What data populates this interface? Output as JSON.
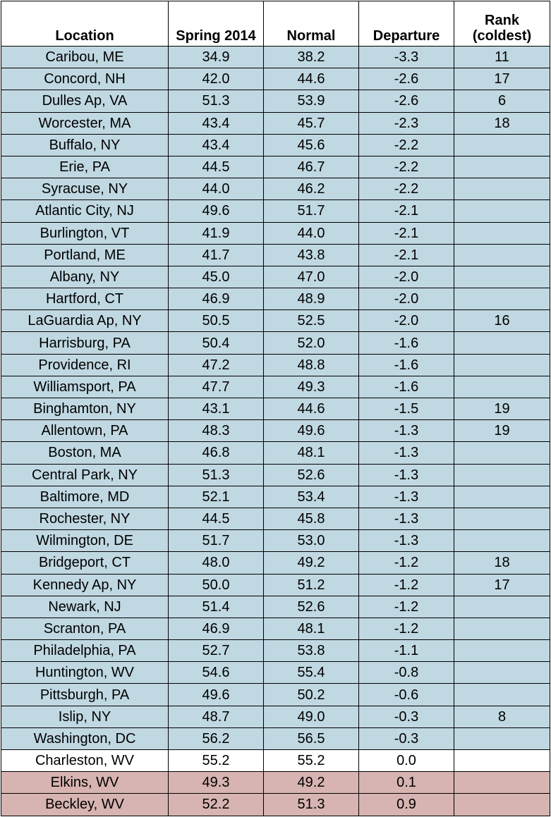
{
  "columns": [
    "Location",
    "Spring 2014",
    "Normal",
    "Departure",
    "Rank (coldest)"
  ],
  "column_lines": {
    "rank": [
      "Rank",
      "(coldest)"
    ]
  },
  "colors": {
    "below_normal": "#c0d8e2",
    "near_normal": "#ffffff",
    "above_normal": "#d7b4b1"
  },
  "rows": [
    {
      "location": "Caribou, ME",
      "spring2014": "34.9",
      "normal": "38.2",
      "departure": "-3.3",
      "rank": "11",
      "category": "below"
    },
    {
      "location": "Concord, NH",
      "spring2014": "42.0",
      "normal": "44.6",
      "departure": "-2.6",
      "rank": "17",
      "category": "below"
    },
    {
      "location": "Dulles Ap, VA",
      "spring2014": "51.3",
      "normal": "53.9",
      "departure": "-2.6",
      "rank": "6",
      "category": "below"
    },
    {
      "location": "Worcester, MA",
      "spring2014": "43.4",
      "normal": "45.7",
      "departure": "-2.3",
      "rank": "18",
      "category": "below"
    },
    {
      "location": "Buffalo, NY",
      "spring2014": "43.4",
      "normal": "45.6",
      "departure": "-2.2",
      "rank": "",
      "category": "below"
    },
    {
      "location": "Erie, PA",
      "spring2014": "44.5",
      "normal": "46.7",
      "departure": "-2.2",
      "rank": "",
      "category": "below"
    },
    {
      "location": "Syracuse, NY",
      "spring2014": "44.0",
      "normal": "46.2",
      "departure": "-2.2",
      "rank": "",
      "category": "below"
    },
    {
      "location": "Atlantic City, NJ",
      "spring2014": "49.6",
      "normal": "51.7",
      "departure": "-2.1",
      "rank": "",
      "category": "below"
    },
    {
      "location": "Burlington, VT",
      "spring2014": "41.9",
      "normal": "44.0",
      "departure": "-2.1",
      "rank": "",
      "category": "below"
    },
    {
      "location": "Portland, ME",
      "spring2014": "41.7",
      "normal": "43.8",
      "departure": "-2.1",
      "rank": "",
      "category": "below"
    },
    {
      "location": "Albany, NY",
      "spring2014": "45.0",
      "normal": "47.0",
      "departure": "-2.0",
      "rank": "",
      "category": "below"
    },
    {
      "location": "Hartford, CT",
      "spring2014": "46.9",
      "normal": "48.9",
      "departure": "-2.0",
      "rank": "",
      "category": "below"
    },
    {
      "location": "LaGuardia Ap, NY",
      "spring2014": "50.5",
      "normal": "52.5",
      "departure": "-2.0",
      "rank": "16",
      "category": "below"
    },
    {
      "location": "Harrisburg, PA",
      "spring2014": "50.4",
      "normal": "52.0",
      "departure": "-1.6",
      "rank": "",
      "category": "below"
    },
    {
      "location": "Providence, RI",
      "spring2014": "47.2",
      "normal": "48.8",
      "departure": "-1.6",
      "rank": "",
      "category": "below"
    },
    {
      "location": "Williamsport, PA",
      "spring2014": "47.7",
      "normal": "49.3",
      "departure": "-1.6",
      "rank": "",
      "category": "below"
    },
    {
      "location": "Binghamton, NY",
      "spring2014": "43.1",
      "normal": "44.6",
      "departure": "-1.5",
      "rank": "19",
      "category": "below"
    },
    {
      "location": "Allentown, PA",
      "spring2014": "48.3",
      "normal": "49.6",
      "departure": "-1.3",
      "rank": "19",
      "category": "below"
    },
    {
      "location": "Boston, MA",
      "spring2014": "46.8",
      "normal": "48.1",
      "departure": "-1.3",
      "rank": "",
      "category": "below"
    },
    {
      "location": "Central Park, NY",
      "spring2014": "51.3",
      "normal": "52.6",
      "departure": "-1.3",
      "rank": "",
      "category": "below"
    },
    {
      "location": "Baltimore, MD",
      "spring2014": "52.1",
      "normal": "53.4",
      "departure": "-1.3",
      "rank": "",
      "category": "below"
    },
    {
      "location": "Rochester, NY",
      "spring2014": "44.5",
      "normal": "45.8",
      "departure": "-1.3",
      "rank": "",
      "category": "below"
    },
    {
      "location": "Wilmington, DE",
      "spring2014": "51.7",
      "normal": "53.0",
      "departure": "-1.3",
      "rank": "",
      "category": "below"
    },
    {
      "location": "Bridgeport, CT",
      "spring2014": "48.0",
      "normal": "49.2",
      "departure": "-1.2",
      "rank": "18",
      "category": "below"
    },
    {
      "location": "Kennedy Ap, NY",
      "spring2014": "50.0",
      "normal": "51.2",
      "departure": "-1.2",
      "rank": "17",
      "category": "below"
    },
    {
      "location": "Newark, NJ",
      "spring2014": "51.4",
      "normal": "52.6",
      "departure": "-1.2",
      "rank": "",
      "category": "below"
    },
    {
      "location": "Scranton, PA",
      "spring2014": "46.9",
      "normal": "48.1",
      "departure": "-1.2",
      "rank": "",
      "category": "below"
    },
    {
      "location": "Philadelphia, PA",
      "spring2014": "52.7",
      "normal": "53.8",
      "departure": "-1.1",
      "rank": "",
      "category": "below"
    },
    {
      "location": "Huntington, WV",
      "spring2014": "54.6",
      "normal": "55.4",
      "departure": "-0.8",
      "rank": "",
      "category": "below"
    },
    {
      "location": "Pittsburgh, PA",
      "spring2014": "49.6",
      "normal": "50.2",
      "departure": "-0.6",
      "rank": "",
      "category": "below"
    },
    {
      "location": "Islip, NY",
      "spring2014": "48.7",
      "normal": "49.0",
      "departure": "-0.3",
      "rank": "8",
      "category": "below"
    },
    {
      "location": "Washington, DC",
      "spring2014": "56.2",
      "normal": "56.5",
      "departure": "-0.3",
      "rank": "",
      "category": "below"
    },
    {
      "location": "Charleston, WV",
      "spring2014": "55.2",
      "normal": "55.2",
      "departure": "0.0",
      "rank": "",
      "category": "normal"
    },
    {
      "location": "Elkins, WV",
      "spring2014": "49.3",
      "normal": "49.2",
      "departure": "0.1",
      "rank": "",
      "category": "above"
    },
    {
      "location": "Beckley, WV",
      "spring2014": "52.2",
      "normal": "51.3",
      "departure": "0.9",
      "rank": "",
      "category": "above"
    }
  ]
}
